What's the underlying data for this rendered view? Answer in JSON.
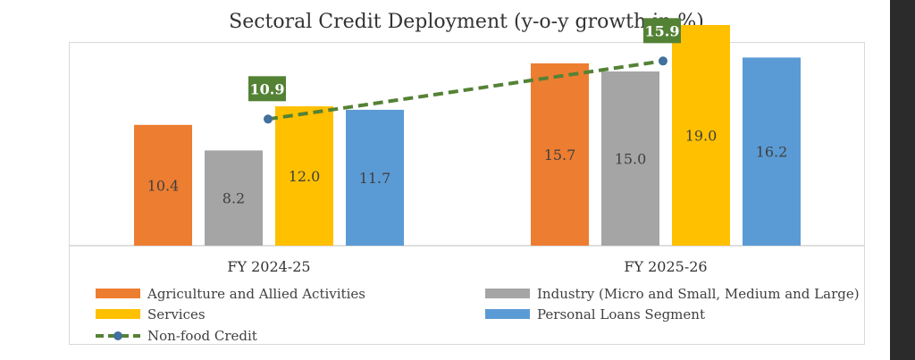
{
  "chart_data": {
    "type": "bar",
    "title": "Sectoral Credit Deployment (y-o-y growth in %)",
    "categories": [
      "FY 2024-25",
      "FY 2025-26"
    ],
    "series": [
      {
        "name": "Agriculture and Allied Activities",
        "color": "#ED7D31",
        "values": [
          10.4,
          15.7
        ]
      },
      {
        "name": "Industry (Micro and Small, Medium and Large)",
        "color": "#A5A5A5",
        "values": [
          8.2,
          15.0
        ]
      },
      {
        "name": "Services",
        "color": "#FFC000",
        "values": [
          12.0,
          19.0
        ]
      },
      {
        "name": "Personal Loans Segment",
        "color": "#5B9BD5",
        "values": [
          11.7,
          16.2
        ]
      }
    ],
    "line_series": {
      "name": "Non-food Credit",
      "type": "line",
      "style": "dashed",
      "color": "#548235",
      "marker_color": "#41719C",
      "values": [
        10.9,
        15.9
      ]
    },
    "ylim": [
      0,
      20
    ],
    "grid": false,
    "legend_position": "bottom"
  }
}
